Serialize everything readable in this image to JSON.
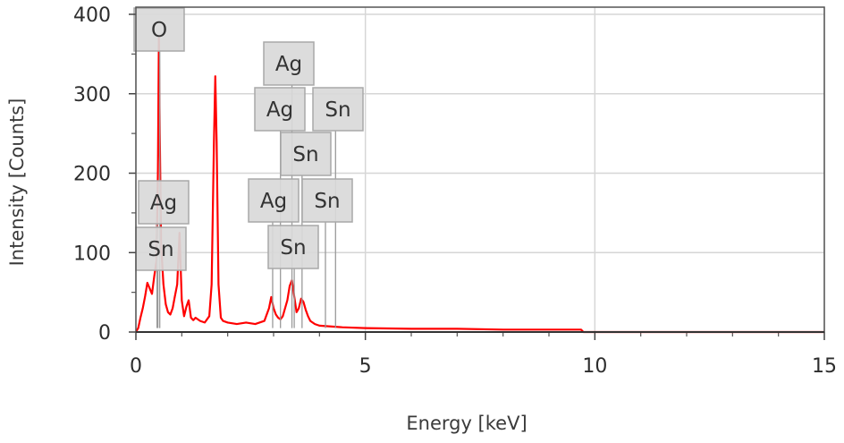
{
  "chart_data": {
    "type": "line",
    "xlabel": "Energy [keV]",
    "ylabel": "Intensity [Counts]",
    "xlim": [
      0,
      15
    ],
    "ylim": [
      0,
      400
    ],
    "x_ticks": [
      "0",
      "5",
      "10",
      "15"
    ],
    "y_ticks": [
      "0",
      "100",
      "200",
      "300",
      "400"
    ],
    "grid": true,
    "series": [
      {
        "color": "#ff0000",
        "x": [
          0.0,
          0.05,
          0.1,
          0.15,
          0.2,
          0.25,
          0.3,
          0.35,
          0.4,
          0.45,
          0.48,
          0.5,
          0.52,
          0.55,
          0.6,
          0.65,
          0.7,
          0.75,
          0.8,
          0.85,
          0.9,
          0.95,
          1.0,
          1.05,
          1.1,
          1.15,
          1.2,
          1.25,
          1.3,
          1.4,
          1.5,
          1.6,
          1.65,
          1.7,
          1.73,
          1.76,
          1.8,
          1.85,
          1.9,
          2.0,
          2.2,
          2.4,
          2.6,
          2.8,
          2.9,
          2.95,
          3.0,
          3.05,
          3.1,
          3.15,
          3.2,
          3.3,
          3.35,
          3.4,
          3.45,
          3.5,
          3.55,
          3.6,
          3.65,
          3.7,
          3.75,
          3.8,
          3.9,
          4.0,
          4.5,
          5.0,
          6.0,
          7.0,
          8.0,
          9.0,
          9.7,
          9.75,
          10.0,
          12.0,
          15.0
        ],
        "y": [
          0,
          5,
          18,
          30,
          45,
          62,
          55,
          48,
          70,
          90,
          200,
          370,
          250,
          110,
          60,
          35,
          25,
          22,
          30,
          45,
          60,
          125,
          40,
          20,
          32,
          40,
          18,
          15,
          18,
          14,
          12,
          20,
          60,
          240,
          322,
          240,
          60,
          18,
          14,
          12,
          10,
          12,
          10,
          14,
          30,
          44,
          30,
          22,
          18,
          16,
          20,
          40,
          58,
          65,
          45,
          25,
          30,
          42,
          38,
          28,
          20,
          14,
          10,
          8,
          6,
          5,
          4,
          4,
          3,
          3,
          3,
          0,
          0,
          0,
          0
        ]
      }
    ],
    "annotations": [
      {
        "label": "O",
        "energy": 0.52
      },
      {
        "label": "Ag",
        "energy": 3.4
      },
      {
        "label": "Ag",
        "energy": 3.15
      },
      {
        "label": "Sn",
        "energy": 4.35
      },
      {
        "label": "Sn",
        "energy": 3.62
      },
      {
        "label": "Ag",
        "energy": 0.46
      },
      {
        "label": "Ag",
        "energy": 2.98
      },
      {
        "label": "Sn",
        "energy": 4.13
      },
      {
        "label": "Sn",
        "energy": 0.48
      },
      {
        "label": "Sn",
        "energy": 3.45
      }
    ]
  }
}
